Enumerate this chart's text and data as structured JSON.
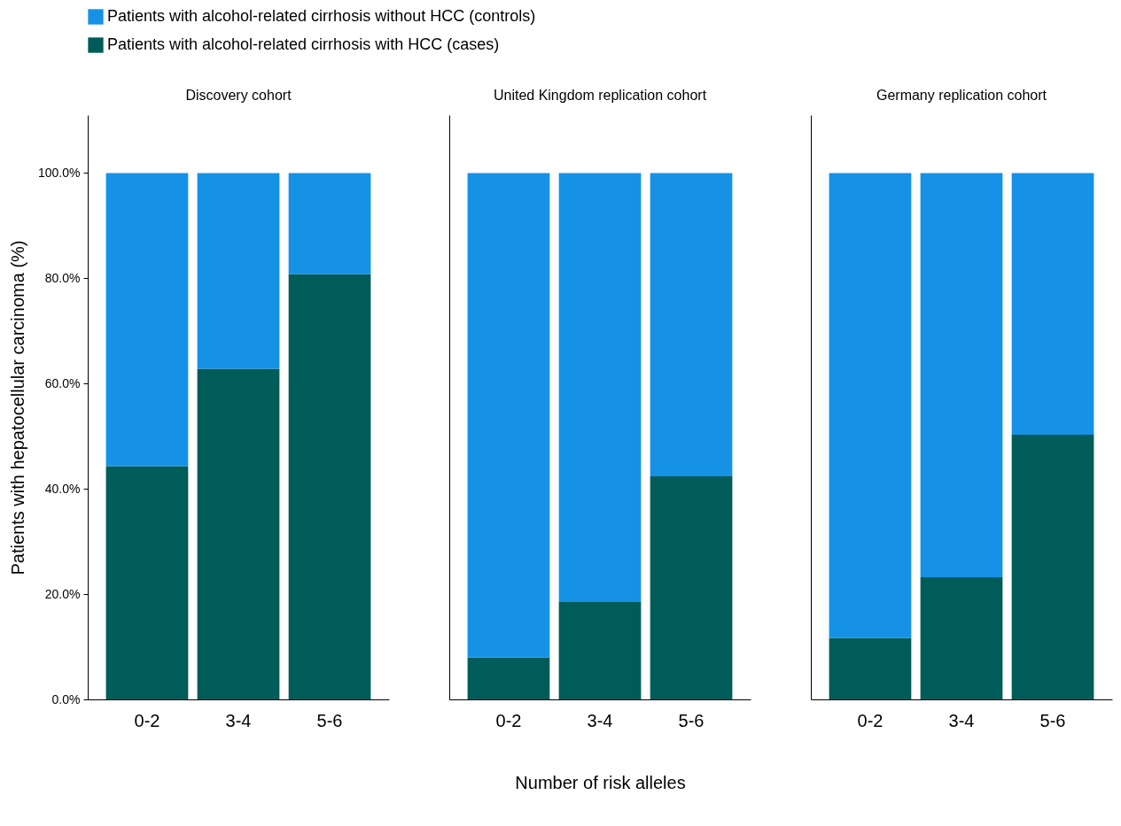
{
  "chart_data": [
    {
      "type": "bar",
      "title": "Discovery cohort",
      "ylabel": "Patients with hepatocellular carcinoma (%)",
      "categories": [
        "0-2",
        "3-4",
        "5-6"
      ],
      "stacked": true,
      "legend": "top",
      "series": [
        {
          "name": "Patients with alcohol-related cirrhosis with HCC (cases)",
          "color": "#005c59",
          "values": [
            44.3,
            62.8,
            80.8
          ]
        },
        {
          "name": "Patients with alcohol-related cirrhosis without HCC (controls)",
          "color": "#1592e6",
          "values": [
            55.7,
            37.2,
            19.2
          ]
        }
      ],
      "ylim": [
        0,
        111
      ],
      "yticks": [
        {
          "value": 0,
          "label": "0.0%"
        },
        {
          "value": 20,
          "label": "20.0%"
        },
        {
          "value": 40,
          "label": "40.0%"
        },
        {
          "value": 60,
          "label": "60.0%"
        },
        {
          "value": 80,
          "label": "80.0%"
        },
        {
          "value": 100,
          "label": "100.0%"
        }
      ]
    },
    {
      "type": "bar",
      "title": "United Kingdom replication cohort",
      "xlabel": "Number of risk alleles",
      "categories": [
        "0-2",
        "3-4",
        "5-6"
      ],
      "stacked": true,
      "tick_labels": "x",
      "series": [
        {
          "color": "#005c59",
          "values": [
            8.0,
            18.5,
            42.4
          ]
        },
        {
          "color": "#1592e6",
          "values": [
            92.0,
            81.5,
            57.6
          ]
        }
      ],
      "ylim": [
        0,
        111
      ]
    },
    {
      "type": "bar",
      "title": "Germany replication cohort",
      "categories": [
        "0-2",
        "3-4",
        "5-6"
      ],
      "stacked": true,
      "tick_labels": "x",
      "series": [
        {
          "color": "#005c59",
          "values": [
            11.7,
            23.2,
            50.3
          ]
        },
        {
          "color": "#1592e6",
          "values": [
            88.3,
            76.8,
            49.7
          ]
        }
      ],
      "ylim": [
        0,
        111
      ]
    }
  ]
}
